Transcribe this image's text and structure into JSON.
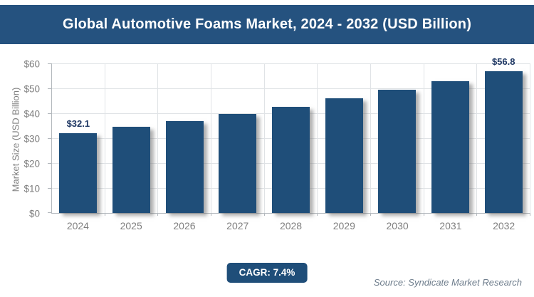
{
  "header": {
    "title": "Global Automotive Foams Market, 2024 - 2032 (USD Billion)",
    "bg_color": "#25527f"
  },
  "chart_data": {
    "type": "bar",
    "title": "Global Automotive Foams Market, 2024 - 2032 (USD Billion)",
    "categories": [
      "2024",
      "2025",
      "2026",
      "2027",
      "2028",
      "2029",
      "2030",
      "2031",
      "2032"
    ],
    "values": [
      32.1,
      34.5,
      37.0,
      39.8,
      42.7,
      45.9,
      49.3,
      52.9,
      56.8
    ],
    "point_labels": [
      {
        "index": 0,
        "text": "$32.1"
      },
      {
        "index": 8,
        "text": "$56.8"
      }
    ],
    "xlabel": "",
    "ylabel": "Market Size (USD Billion)",
    "ylim": [
      0,
      60
    ],
    "yticks": [
      {
        "value": 0,
        "label": "$0"
      },
      {
        "value": 10,
        "label": "$10"
      },
      {
        "value": 20,
        "label": "$20"
      },
      {
        "value": 30,
        "label": "$30"
      },
      {
        "value": 40,
        "label": "$40"
      },
      {
        "value": 50,
        "label": "$50"
      },
      {
        "value": 60,
        "label": "$60"
      }
    ],
    "grid": true,
    "legend": false,
    "bar_color": "#1f4e79",
    "gridline_color": "#e0e3e6",
    "axis_color": "#b3b8bd",
    "tick_label_color": "#7f7f7f",
    "data_label_color": "#1f3864"
  },
  "footer": {
    "cagr_label": "CAGR: 7.4%",
    "badge_color": "#1f4e79",
    "source": "Source: Syndicate Market Research"
  }
}
